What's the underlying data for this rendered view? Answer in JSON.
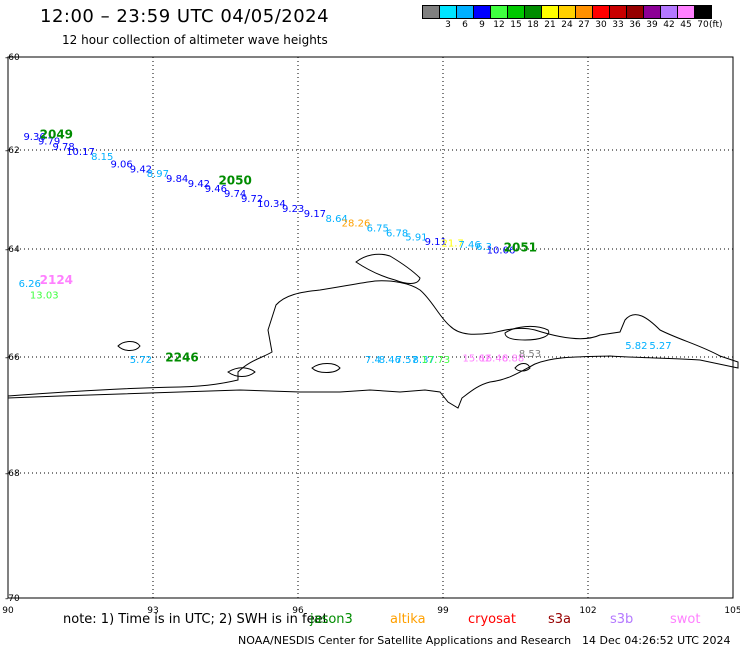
{
  "header": {
    "title": "12:00 – 23:59 UTC 04/05/2024",
    "subtitle": "12 hour collection of altimeter wave heights"
  },
  "legend": {
    "unit": "(ft)",
    "items": [
      {
        "label": "",
        "color": "#808080"
      },
      {
        "label": "3",
        "color": "#00e5ff"
      },
      {
        "label": "6",
        "color": "#00b0ff"
      },
      {
        "label": "9",
        "color": "#0000ff"
      },
      {
        "label": "12",
        "color": "#40ff40"
      },
      {
        "label": "15",
        "color": "#00c800"
      },
      {
        "label": "18",
        "color": "#008c00"
      },
      {
        "label": "21",
        "color": "#ffff00"
      },
      {
        "label": "24",
        "color": "#ffd000"
      },
      {
        "label": "27",
        "color": "#ff9000"
      },
      {
        "label": "30",
        "color": "#ff0000"
      },
      {
        "label": "33",
        "color": "#c80000"
      },
      {
        "label": "36",
        "color": "#960000"
      },
      {
        "label": "39",
        "color": "#8c0096"
      },
      {
        "label": "42",
        "color": "#b478ff"
      },
      {
        "label": "45",
        "color": "#ff80ff"
      },
      {
        "label": "70",
        "color": "#000000"
      }
    ]
  },
  "axes": {
    "lat_ticks": [
      "-60",
      "-62",
      "-64",
      "-66",
      "-68",
      "-70"
    ],
    "lon_ticks": [
      "90",
      "93",
      "96",
      "99",
      "102",
      "105"
    ],
    "grid": "dotted"
  },
  "time_labels": [
    {
      "text": "2049",
      "lon": 91.0,
      "lat": -61.75,
      "color": "#008c00"
    },
    {
      "text": "2050",
      "lon": 94.7,
      "lat": -62.7,
      "color": "#008c00"
    },
    {
      "text": "2051",
      "lon": 100.6,
      "lat": -64.05,
      "color": "#008c00"
    },
    {
      "text": "2124",
      "lon": 91.0,
      "lat": -64.65,
      "color": "#ff80ff"
    },
    {
      "text": "2246",
      "lon": 93.6,
      "lat": -66.08,
      "color": "#008c00"
    }
  ],
  "wave_heights": [
    {
      "text": "9.36",
      "lon": 90.55,
      "lat": -61.78,
      "color": "#0000ff"
    },
    {
      "text": "9.79",
      "lon": 90.85,
      "lat": -61.88,
      "color": "#0000ff"
    },
    {
      "text": "9.78",
      "lon": 91.15,
      "lat": -62.0,
      "color": "#0000ff"
    },
    {
      "text": "10.17",
      "lon": 91.5,
      "lat": -62.1,
      "color": "#0000ff"
    },
    {
      "text": "8.15",
      "lon": 91.95,
      "lat": -62.2,
      "color": "#00b0ff"
    },
    {
      "text": "9.06",
      "lon": 92.35,
      "lat": -62.35,
      "color": "#0000ff"
    },
    {
      "text": "9.42",
      "lon": 92.75,
      "lat": -62.45,
      "color": "#0000ff"
    },
    {
      "text": "8.97",
      "lon": 93.1,
      "lat": -62.55,
      "color": "#00b0ff"
    },
    {
      "text": "9.84",
      "lon": 93.5,
      "lat": -62.65,
      "color": "#0000ff"
    },
    {
      "text": "9.42",
      "lon": 93.95,
      "lat": -62.75,
      "color": "#0000ff"
    },
    {
      "text": "9.46",
      "lon": 94.3,
      "lat": -62.85,
      "color": "#0000ff"
    },
    {
      "text": "9.74",
      "lon": 94.7,
      "lat": -62.95,
      "color": "#0000ff"
    },
    {
      "text": "9.72",
      "lon": 95.05,
      "lat": -63.05,
      "color": "#0000ff"
    },
    {
      "text": "10.34",
      "lon": 95.45,
      "lat": -63.15,
      "color": "#0000ff"
    },
    {
      "text": "9.23",
      "lon": 95.9,
      "lat": -63.25,
      "color": "#0000ff"
    },
    {
      "text": "9.17",
      "lon": 96.35,
      "lat": -63.35,
      "color": "#0000ff"
    },
    {
      "text": "8.64",
      "lon": 96.8,
      "lat": -63.45,
      "color": "#00b0ff"
    },
    {
      "text": "28.26",
      "lon": 97.2,
      "lat": -63.55,
      "color": "#ffa000"
    },
    {
      "text": "6.75",
      "lon": 97.65,
      "lat": -63.65,
      "color": "#00b0ff"
    },
    {
      "text": "6.78",
      "lon": 98.05,
      "lat": -63.75,
      "color": "#00b0ff"
    },
    {
      "text": "5.91",
      "lon": 98.45,
      "lat": -63.83,
      "color": "#00b0ff"
    },
    {
      "text": "9.11",
      "lon": 98.85,
      "lat": -63.92,
      "color": "#0000ff"
    },
    {
      "text": "21.7",
      "lon": 99.2,
      "lat": -63.95,
      "color": "#ffff00"
    },
    {
      "text": "7.46",
      "lon": 99.55,
      "lat": -63.98,
      "color": "#00b0ff"
    },
    {
      "text": "6.3",
      "lon": 99.85,
      "lat": -64.02,
      "color": "#00b0ff"
    },
    {
      "text": "10.06",
      "lon": 100.2,
      "lat": -64.08,
      "color": "#0000ff"
    },
    {
      "text": "6.26",
      "lon": 90.45,
      "lat": -64.7,
      "color": "#00b0ff"
    },
    {
      "text": "13.03",
      "lon": 90.75,
      "lat": -64.92,
      "color": "#40ff40"
    },
    {
      "text": "5.72",
      "lon": 92.75,
      "lat": -66.1,
      "color": "#00b0ff"
    },
    {
      "text": "7.4",
      "lon": 97.55,
      "lat": -66.1,
      "color": "#00b0ff"
    },
    {
      "text": "8.46",
      "lon": 97.9,
      "lat": -66.1,
      "color": "#00b0ff"
    },
    {
      "text": "7.57",
      "lon": 98.25,
      "lat": -66.1,
      "color": "#00b0ff"
    },
    {
      "text": "8.37",
      "lon": 98.6,
      "lat": -66.1,
      "color": "#00b0ff"
    },
    {
      "text": "17.73",
      "lon": 98.85,
      "lat": -66.1,
      "color": "#40ff40"
    },
    {
      "text": "15.62",
      "lon": 99.7,
      "lat": -66.08,
      "color": "#ff80ff"
    },
    {
      "text": "16.46",
      "lon": 100.05,
      "lat": -66.08,
      "color": "#ff80ff"
    },
    {
      "text": "8.88",
      "lon": 100.45,
      "lat": -66.08,
      "color": "#ff80ff"
    },
    {
      "text": "8.53",
      "lon": 100.8,
      "lat": -66.0,
      "color": "#808080"
    },
    {
      "text": "5.82",
      "lon": 103.0,
      "lat": -65.85,
      "color": "#00b0ff"
    },
    {
      "text": "5.27",
      "lon": 103.5,
      "lat": -65.85,
      "color": "#00b0ff"
    }
  ],
  "footer": {
    "note": "note: 1) Time is in UTC; 2) SWH is in feet",
    "satellites": [
      {
        "name": "jason3",
        "color": "#008c00"
      },
      {
        "name": "altika",
        "color": "#ffa000"
      },
      {
        "name": "cryosat",
        "color": "#ff0000"
      },
      {
        "name": "s3a",
        "color": "#960000"
      },
      {
        "name": "s3b",
        "color": "#b478ff"
      },
      {
        "name": "swot",
        "color": "#ff80ff"
      }
    ],
    "credit": "NOAA/NESDIS Center for Satellite Applications and Research",
    "generated": "14 Dec 04:26:52 UTC 2024"
  }
}
